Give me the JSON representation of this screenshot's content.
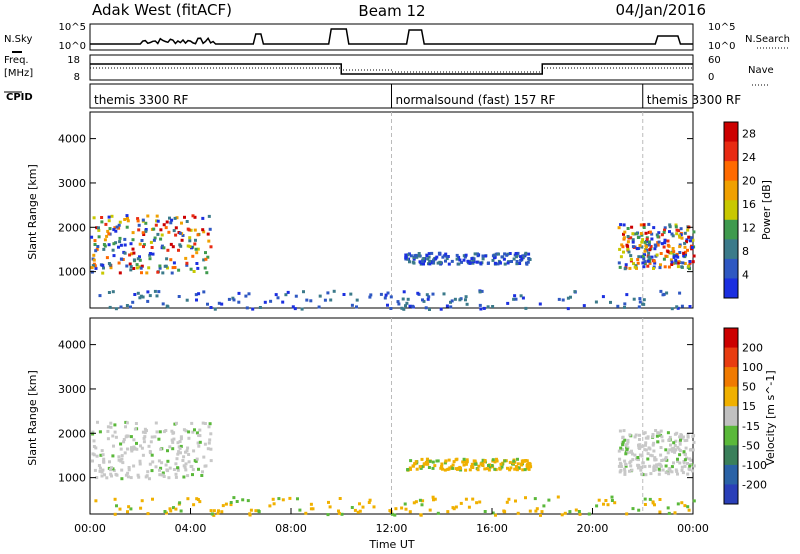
{
  "header": {
    "station": "Adak West (fitACF)",
    "beam": "Beam 12",
    "date": "04/Jan/2016"
  },
  "side_labels": {
    "nsky": "N.Sky",
    "nsearch": "N.Search",
    "freq": "Freq.",
    "mhz": "[MHz]",
    "nave": "Nave",
    "cpid": "CPID"
  },
  "noise_axis": {
    "left_ticks": [
      "10^5",
      "10^0"
    ],
    "right_ticks": [
      "10^5",
      "10^0"
    ]
  },
  "freq_axis": {
    "left_ticks": [
      "18",
      "8"
    ],
    "right_ticks": [
      "60",
      "0"
    ]
  },
  "cpid_segments": [
    {
      "label": "themis 3300 RF",
      "start_hour": 0
    },
    {
      "label": "normalsound (fast) 157 RF",
      "start_hour": 12
    },
    {
      "label": "themis 3300 RF",
      "start_hour": 22
    }
  ],
  "colors": {
    "power_scale": [
      "#1b2fe0",
      "#2f58c2",
      "#3b7a8a",
      "#3f9a4e",
      "#c8c800",
      "#f0a000",
      "#ff6a00",
      "#e82a12",
      "#cc0000"
    ],
    "velocity_scale": [
      "#2a3fb8",
      "#2a62a6",
      "#3a7f5a",
      "#5ab83a",
      "#c0c0c0",
      "#f0b000",
      "#f07a00",
      "#e83c10",
      "#cc0000"
    ]
  },
  "chart_data": [
    {
      "type": "heatmap",
      "title": "",
      "xlabel": "",
      "ylabel": "Slant Range [km]",
      "xlim": [
        "00:00",
        "00:00"
      ],
      "ylim": [
        180,
        4600
      ],
      "y_ticks": [
        "1000",
        "2000",
        "3000",
        "4000"
      ],
      "colorbar": {
        "label": "Power [dB]",
        "ticks": [
          "4",
          "8",
          "12",
          "16",
          "20",
          "24",
          "28"
        ],
        "range": [
          0,
          30
        ]
      },
      "features": [
        {
          "start_hour": 0.0,
          "end_hour": 4.8,
          "range_km": [
            1000,
            2300
          ],
          "level": "high"
        },
        {
          "start_hour": 12.5,
          "end_hour": 17.5,
          "range_km": [
            1200,
            1450
          ],
          "level": "low"
        },
        {
          "start_hour": 21.0,
          "end_hour": 24.0,
          "range_km": [
            1100,
            2100
          ],
          "level": "high"
        },
        {
          "start_hour": 0.0,
          "end_hour": 24.0,
          "range_km": [
            180,
            600
          ],
          "level": "low"
        }
      ]
    },
    {
      "type": "heatmap",
      "title": "",
      "xlabel": "Time UT",
      "ylabel": "Slant Range [km]",
      "xlim": [
        "00:00",
        "00:00"
      ],
      "ylim": [
        180,
        4600
      ],
      "y_ticks": [
        "1000",
        "2000",
        "3000",
        "4000"
      ],
      "x_ticks": [
        "00:00",
        "04:00",
        "08:00",
        "12:00",
        "16:00",
        "20:00",
        "00:00"
      ],
      "colorbar": {
        "label": "Velocity [m s^-1]",
        "ticks": [
          "200",
          "100",
          "50",
          "15",
          "-15",
          "-50",
          "-100",
          "-200"
        ],
        "range": [
          -250,
          250
        ]
      },
      "features": [
        {
          "start_hour": 0.0,
          "end_hour": 4.8,
          "range_km": [
            1000,
            2300
          ],
          "level": "gray"
        },
        {
          "start_hour": 12.5,
          "end_hour": 17.5,
          "range_km": [
            1200,
            1450
          ],
          "level": "orange"
        },
        {
          "start_hour": 21.0,
          "end_hour": 24.0,
          "range_km": [
            1100,
            2100
          ],
          "level": "gray"
        },
        {
          "start_hour": 0.0,
          "end_hour": 24.0,
          "range_km": [
            180,
            600
          ],
          "level": "orange"
        }
      ]
    }
  ]
}
